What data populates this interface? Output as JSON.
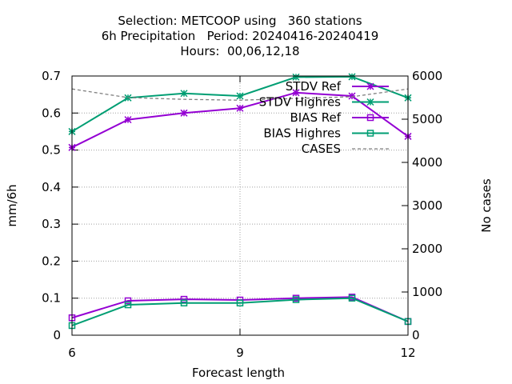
{
  "chart_data": {
    "type": "line",
    "title_lines": [
      "Selection: METCOOP using   360 stations",
      "6h Precipitation   Period: 20240416-20240419",
      "Hours:  00,06,12,18"
    ],
    "xlabel": "Forecast length",
    "ylabel": "mm/6h",
    "y2label": "No cases",
    "x_ticks": [
      "6",
      "9",
      "12"
    ],
    "y_ticks": [
      "0",
      "0.1",
      "0.2",
      "0.3",
      "0.4",
      "0.5",
      "0.6",
      "0.7"
    ],
    "y2_ticks": [
      "0",
      "1000",
      "2000",
      "3000",
      "4000",
      "5000",
      "6000"
    ],
    "xlim": [
      6,
      12
    ],
    "ylim": [
      0,
      0.7
    ],
    "y2lim": [
      0,
      6000
    ],
    "grid": true,
    "legend_position": "top-right",
    "x": [
      6,
      7,
      8,
      9,
      10,
      11,
      12
    ],
    "series": [
      {
        "name": "STDV Ref",
        "axis": "y",
        "color": "#9400d3",
        "marker": "star",
        "dash": false,
        "values": [
          0.507,
          0.582,
          0.6,
          0.613,
          0.655,
          0.646,
          0.537
        ]
      },
      {
        "name": "STDV Highres",
        "axis": "y",
        "color": "#009e73",
        "marker": "star",
        "dash": false,
        "values": [
          0.55,
          0.641,
          0.653,
          0.646,
          0.697,
          0.698,
          0.641
        ]
      },
      {
        "name": "BIAS Ref",
        "axis": "y",
        "color": "#9400d3",
        "marker": "square",
        "dash": false,
        "values": [
          0.047,
          0.093,
          0.097,
          0.095,
          0.1,
          0.103,
          0.037
        ]
      },
      {
        "name": "BIAS Highres",
        "axis": "y",
        "color": "#009e73",
        "marker": "square",
        "dash": false,
        "values": [
          0.026,
          0.082,
          0.087,
          0.087,
          0.096,
          0.1,
          0.037
        ]
      },
      {
        "name": "CASES",
        "axis": "y2",
        "color": "#808080",
        "marker": "none",
        "dash": true,
        "values": [
          5700,
          5500,
          5460,
          5440,
          5480,
          5520,
          5700
        ]
      }
    ]
  }
}
